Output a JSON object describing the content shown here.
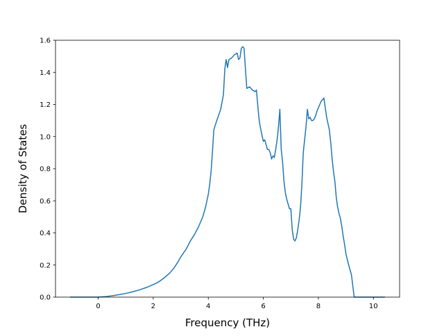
{
  "chart_data": {
    "type": "line",
    "title": "",
    "xlabel": "Frequency (THz)",
    "ylabel": "Density of States",
    "xlim": [
      -1.55,
      10.95
    ],
    "ylim": [
      0.0,
      1.6
    ],
    "grid": false,
    "x_ticks": [
      0,
      2,
      4,
      6,
      8,
      10
    ],
    "x_tick_labels": [
      "0",
      "2",
      "4",
      "6",
      "8",
      "10"
    ],
    "y_ticks": [
      0.0,
      0.2,
      0.4,
      0.6,
      0.8,
      1.0,
      1.2,
      1.4,
      1.6
    ],
    "y_tick_labels": [
      "0.0",
      "0.2",
      "0.4",
      "0.6",
      "0.8",
      "1.0",
      "1.2",
      "1.4",
      "1.6"
    ],
    "series": [
      {
        "color": "#1f77b4",
        "x": [
          -1.0,
          -0.5,
          0.0,
          0.25,
          0.5,
          0.75,
          1.0,
          1.25,
          1.5,
          1.75,
          2.0,
          2.2,
          2.4,
          2.6,
          2.75,
          2.9,
          3.0,
          3.2,
          3.35,
          3.5,
          3.65,
          3.8,
          3.9,
          4.0,
          4.05,
          4.1,
          4.15,
          4.2,
          4.25,
          4.35,
          4.45,
          4.55,
          4.6,
          4.65,
          4.7,
          4.75,
          4.85,
          4.95,
          5.05,
          5.1,
          5.15,
          5.2,
          5.25,
          5.3,
          5.35,
          5.4,
          5.5,
          5.6,
          5.7,
          5.75,
          5.8,
          5.85,
          5.9,
          6.0,
          6.05,
          6.1,
          6.15,
          6.2,
          6.25,
          6.3,
          6.35,
          6.4,
          6.45,
          6.5,
          6.55,
          6.6,
          6.65,
          6.7,
          6.75,
          6.8,
          6.85,
          6.9,
          6.95,
          7.0,
          7.05,
          7.1,
          7.15,
          7.2,
          7.25,
          7.3,
          7.35,
          7.4,
          7.45,
          7.5,
          7.55,
          7.6,
          7.65,
          7.7,
          7.75,
          7.8,
          7.85,
          7.9,
          7.95,
          8.0,
          8.05,
          8.1,
          8.2,
          8.3,
          8.4,
          8.45,
          8.5,
          8.55,
          8.6,
          8.65,
          8.7,
          8.75,
          8.8,
          8.85,
          8.9,
          8.95,
          9.0,
          9.1,
          9.2,
          9.3,
          9.4,
          9.45,
          9.5,
          9.55,
          9.6,
          10.0,
          10.4
        ],
        "y": [
          0.0,
          0.0,
          0.0,
          0.003,
          0.008,
          0.015,
          0.023,
          0.033,
          0.045,
          0.06,
          0.078,
          0.095,
          0.12,
          0.15,
          0.18,
          0.22,
          0.25,
          0.3,
          0.35,
          0.39,
          0.44,
          0.5,
          0.56,
          0.64,
          0.7,
          0.78,
          0.9,
          1.04,
          1.07,
          1.12,
          1.17,
          1.26,
          1.42,
          1.48,
          1.43,
          1.48,
          1.49,
          1.51,
          1.52,
          1.48,
          1.49,
          1.55,
          1.56,
          1.55,
          1.42,
          1.3,
          1.31,
          1.29,
          1.28,
          1.29,
          1.19,
          1.1,
          1.05,
          0.97,
          0.98,
          0.95,
          0.92,
          0.92,
          0.9,
          0.86,
          0.88,
          0.87,
          0.92,
          0.98,
          1.06,
          1.17,
          0.92,
          0.84,
          0.72,
          0.65,
          0.61,
          0.58,
          0.55,
          0.55,
          0.42,
          0.36,
          0.35,
          0.37,
          0.42,
          0.48,
          0.56,
          0.7,
          0.9,
          0.98,
          1.06,
          1.17,
          1.11,
          1.12,
          1.1,
          1.1,
          1.11,
          1.13,
          1.16,
          1.18,
          1.2,
          1.22,
          1.24,
          1.12,
          1.04,
          0.96,
          0.86,
          0.78,
          0.72,
          0.62,
          0.56,
          0.52,
          0.49,
          0.44,
          0.38,
          0.33,
          0.27,
          0.2,
          0.14,
          0.0,
          0.0,
          0.0,
          0.0,
          0.0,
          0.0,
          0.0,
          0.0
        ]
      }
    ]
  }
}
